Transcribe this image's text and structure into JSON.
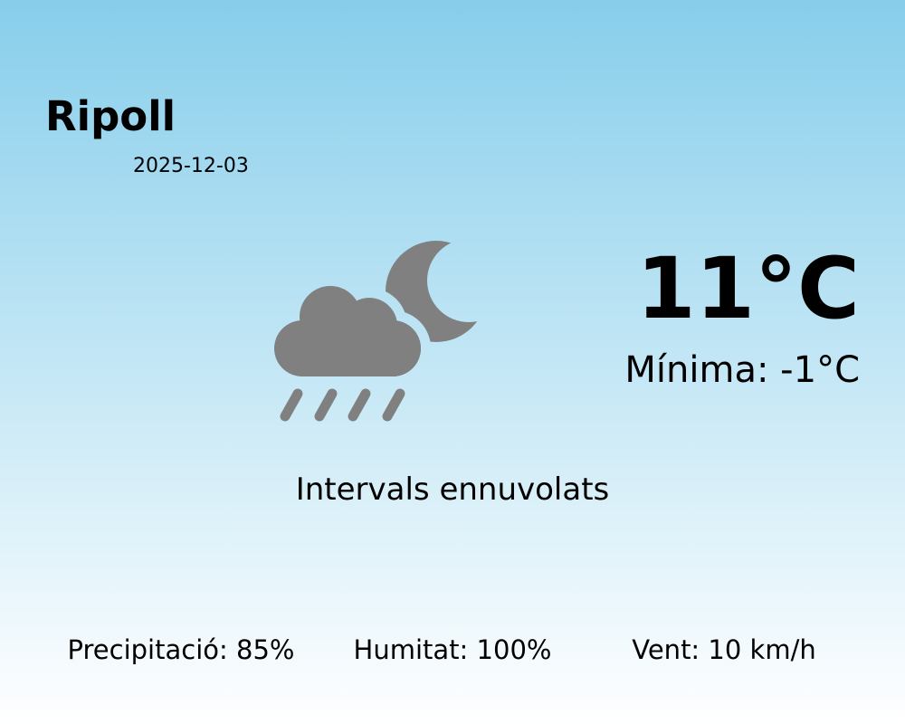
{
  "location": {
    "city": "Ripoll",
    "date": "2025-12-03"
  },
  "weather": {
    "temperature": "11°C",
    "minimum": "Mínima: -1°C",
    "condition": "Intervals ennuvolats",
    "icon": "cloud-rain-moon-icon",
    "icon_color": "#808080"
  },
  "stats": {
    "precipitation": "Precipitació: 85%",
    "humidity": "Humitat: 100%",
    "wind": "Vent: 10 km/h"
  },
  "colors": {
    "background_top": "#87ceeb",
    "background_bottom": "#ffffff"
  }
}
